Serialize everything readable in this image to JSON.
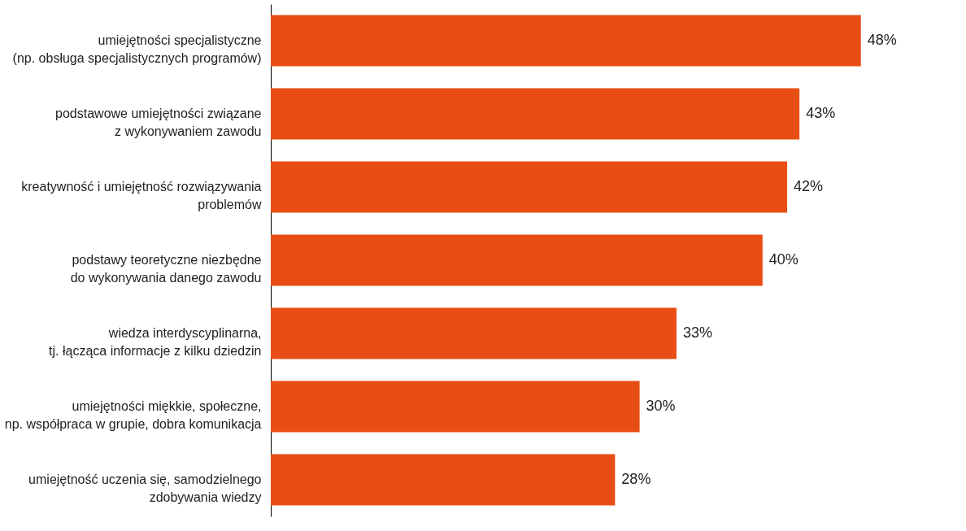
{
  "chart_data": {
    "type": "bar",
    "orientation": "horizontal",
    "categories": [
      "umiejętności specjalistyczne\n(np. obsługa specjalistycznych programów)",
      "podstawowe umiejętności związane\nz wykonywaniem zawodu",
      "kreatywność i umiejętność rozwiązywania\nproblemów",
      "podstawy teoretyczne niezbędne\ndo wykonywania danego zawodu",
      "wiedza interdyscyplinarna,\ntj. łącząca informacje z kilku dziedzin",
      "umiejętności miękkie, społeczne,\nnp. współpraca w grupie, dobra komunikacja",
      "umiejętność uczenia się, samodzielnego\nzdobywania wiedzy"
    ],
    "values": [
      48,
      43,
      42,
      40,
      33,
      30,
      28
    ],
    "value_labels": [
      "48%",
      "43%",
      "42%",
      "40%",
      "33%",
      "30%",
      "28%"
    ],
    "color": "#e84e13"
  }
}
